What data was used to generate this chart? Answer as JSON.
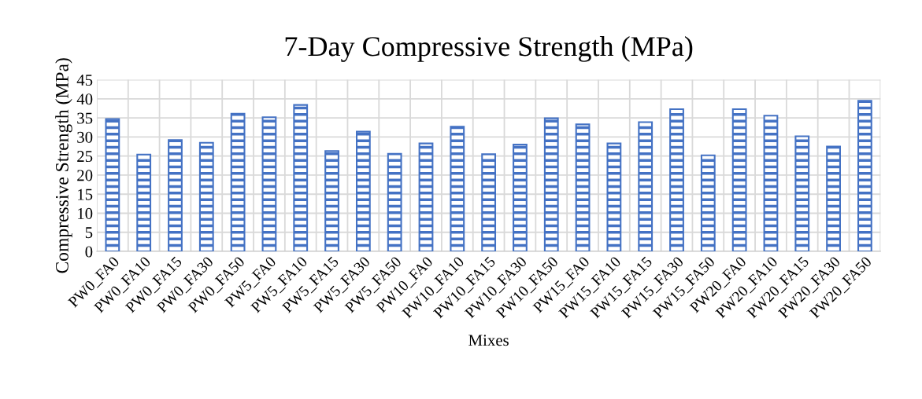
{
  "chart_data": {
    "type": "bar",
    "title": "7-Day Compressive Strength (MPa)",
    "xlabel": "Mixes",
    "ylabel": "Compressive Strength (MPa)",
    "categories": [
      "PW0_FA0",
      "PW0_FA10",
      "PW0_FA15",
      "PW0_FA30",
      "PW0_FA50",
      "PW5_FA0",
      "PW5_FA10",
      "PW5_FA15",
      "PW5_FA30",
      "PW5_FA50",
      "PW10_FA0",
      "PW10_FA10",
      "PW10_FA15",
      "PW10_FA30",
      "PW10_FA50",
      "PW15_FA0",
      "PW15_FA10",
      "PW15_FA15",
      "PW15_FA30",
      "PW15_FA50",
      "PW20_FA0",
      "PW20_FA10",
      "PW20_FA15",
      "PW20_FA30",
      "PW20_FA50"
    ],
    "values": [
      34.7,
      25.4,
      29.2,
      28.5,
      36.1,
      35.2,
      38.4,
      26.3,
      31.4,
      25.6,
      28.3,
      32.7,
      25.5,
      28.0,
      34.9,
      33.3,
      28.3,
      33.9,
      37.3,
      25.2,
      37.3,
      35.6,
      30.2,
      27.5,
      39.5
    ],
    "color": "#4472c4",
    "ylim": [
      0,
      45
    ],
    "yticks": [
      0,
      5,
      10,
      15,
      20,
      25,
      30,
      35,
      40,
      45
    ],
    "grid": true,
    "legend": false
  }
}
